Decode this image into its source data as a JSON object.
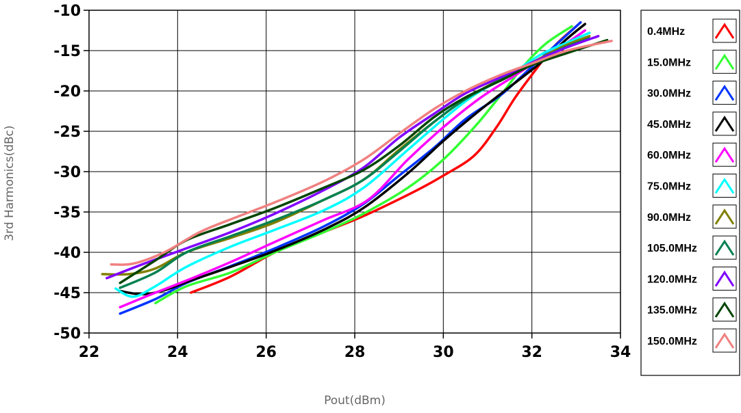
{
  "chart_data": {
    "type": "line",
    "title": "",
    "xlabel": "Pout(dBm)",
    "ylabel": "3rd Harmonics(dBc)",
    "xlim": [
      22,
      34
    ],
    "ylim": [
      -50,
      -10
    ],
    "xticks": [
      "22",
      "24",
      "26",
      "28",
      "30",
      "32",
      "34"
    ],
    "yticks": [
      "-10",
      "-15",
      "-20",
      "-25",
      "-30",
      "-35",
      "-40",
      "-45",
      "-50"
    ],
    "grid": true,
    "legend_position": "right",
    "series": [
      {
        "name": "0.4MHz",
        "color": "#ff0000",
        "x": [
          24.3,
          25.2,
          26.2,
          27.3,
          28.2,
          29.3,
          30.0,
          30.7,
          31.2,
          31.6,
          32.0,
          32.5,
          33.0
        ],
        "y": [
          -45.0,
          -43.0,
          -40.0,
          -37.5,
          -35.5,
          -32.6,
          -30.5,
          -28.0,
          -24.5,
          -21.0,
          -18.0,
          -14.5,
          -12.0
        ]
      },
      {
        "name": "15.0MHz",
        "color": "#33ff33",
        "x": [
          23.5,
          24.2,
          25.2,
          26.2,
          27.3,
          28.2,
          29.2,
          30.0,
          30.7,
          31.3,
          31.8,
          32.3,
          32.9
        ],
        "y": [
          -46.3,
          -44.2,
          -42.5,
          -40.0,
          -37.5,
          -35.2,
          -32.0,
          -28.5,
          -24.5,
          -20.5,
          -17.0,
          -14.2,
          -12.0
        ]
      },
      {
        "name": "30.0MHz",
        "color": "#0033ff",
        "x": [
          22.7,
          23.5,
          24.2,
          25.2,
          26.2,
          27.3,
          28.2,
          29.0,
          29.8,
          30.5,
          31.3,
          32.0,
          32.6,
          33.1
        ],
        "y": [
          -47.6,
          -45.8,
          -43.8,
          -41.7,
          -39.5,
          -36.8,
          -34.0,
          -30.5,
          -27.0,
          -23.5,
          -20.5,
          -17.0,
          -14.0,
          -11.5
        ]
      },
      {
        "name": "45.0MHz",
        "color": "#000000",
        "x": [
          22.7,
          23.2,
          23.7,
          24.3,
          25.2,
          26.2,
          27.3,
          28.2,
          29.2,
          30.0,
          30.8,
          31.5,
          32.2,
          32.8,
          33.2
        ],
        "y": [
          -44.8,
          -45.2,
          -44.7,
          -43.5,
          -41.8,
          -39.8,
          -37.2,
          -34.5,
          -30.2,
          -26.2,
          -22.5,
          -19.5,
          -16.5,
          -13.5,
          -11.7
        ]
      },
      {
        "name": "60.0MHz",
        "color": "#ff00ff",
        "x": [
          22.7,
          23.5,
          24.2,
          25.2,
          26.2,
          27.3,
          28.3,
          29.2,
          30.0,
          30.8,
          31.5,
          32.2,
          32.8,
          33.2
        ],
        "y": [
          -46.8,
          -45.0,
          -43.5,
          -41.2,
          -38.7,
          -36.0,
          -33.5,
          -28.5,
          -24.5,
          -21.0,
          -18.5,
          -16.0,
          -14.0,
          -12.5
        ]
      },
      {
        "name": "75.0MHz",
        "color": "#00ffff",
        "x": [
          22.6,
          23.0,
          23.5,
          24.2,
          25.2,
          26.2,
          27.3,
          28.2,
          29.2,
          30.0,
          30.7,
          31.5,
          32.2,
          32.8,
          33.3
        ],
        "y": [
          -44.5,
          -45.5,
          -44.2,
          -41.8,
          -39.3,
          -37.2,
          -34.8,
          -32.0,
          -27.3,
          -23.5,
          -20.5,
          -18.0,
          -15.5,
          -14.0,
          -12.8
        ]
      },
      {
        "name": "90.0MHz",
        "color": "#808000",
        "x": [
          22.3,
          22.9,
          23.5,
          24.2,
          25.2,
          26.2,
          27.3,
          28.2,
          29.0,
          29.8,
          30.5,
          31.3,
          32.0,
          32.7,
          33.3
        ],
        "y": [
          -42.7,
          -42.7,
          -42.0,
          -40.0,
          -38.2,
          -36.3,
          -33.5,
          -31.0,
          -27.3,
          -23.8,
          -21.0,
          -18.5,
          -16.5,
          -14.5,
          -13.2
        ]
      },
      {
        "name": "105.0MHz",
        "color": "#008050",
        "x": [
          22.7,
          23.5,
          24.2,
          25.2,
          26.2,
          27.3,
          28.2,
          29.0,
          29.8,
          30.5,
          31.3,
          32.0,
          32.7,
          33.3
        ],
        "y": [
          -44.4,
          -42.5,
          -40.0,
          -38.0,
          -36.0,
          -33.5,
          -31.0,
          -27.5,
          -23.8,
          -21.0,
          -18.6,
          -16.6,
          -14.7,
          -13.5
        ]
      },
      {
        "name": "120.0MHz",
        "color": "#8000ff",
        "x": [
          22.4,
          23.2,
          24.2,
          25.2,
          26.2,
          27.3,
          28.2,
          29.0,
          29.8,
          30.5,
          31.3,
          32.0,
          32.7,
          33.5
        ],
        "y": [
          -43.2,
          -41.5,
          -39.5,
          -37.5,
          -35.2,
          -32.3,
          -29.5,
          -25.8,
          -22.8,
          -20.3,
          -18.3,
          -16.5,
          -14.8,
          -13.2
        ]
      },
      {
        "name": "135.0MHz",
        "color": "#004400",
        "x": [
          22.7,
          23.5,
          24.2,
          25.2,
          26.2,
          27.3,
          28.2,
          29.0,
          29.8,
          30.5,
          31.3,
          32.0,
          32.8,
          33.7
        ],
        "y": [
          -43.8,
          -41.0,
          -38.5,
          -36.5,
          -34.5,
          -32.0,
          -29.8,
          -26.8,
          -23.2,
          -20.8,
          -18.7,
          -16.8,
          -15.3,
          -13.7
        ]
      },
      {
        "name": "150.0MHz",
        "color": "#f08080",
        "x": [
          22.5,
          23.0,
          23.7,
          24.5,
          25.3,
          26.2,
          27.3,
          28.2,
          29.0,
          29.8,
          30.5,
          31.3,
          32.0,
          32.8,
          33.8
        ],
        "y": [
          -41.5,
          -41.4,
          -40.0,
          -37.5,
          -35.7,
          -33.8,
          -31.2,
          -28.5,
          -25.3,
          -22.2,
          -20.0,
          -18.0,
          -16.6,
          -15.0,
          -13.8
        ]
      }
    ]
  }
}
